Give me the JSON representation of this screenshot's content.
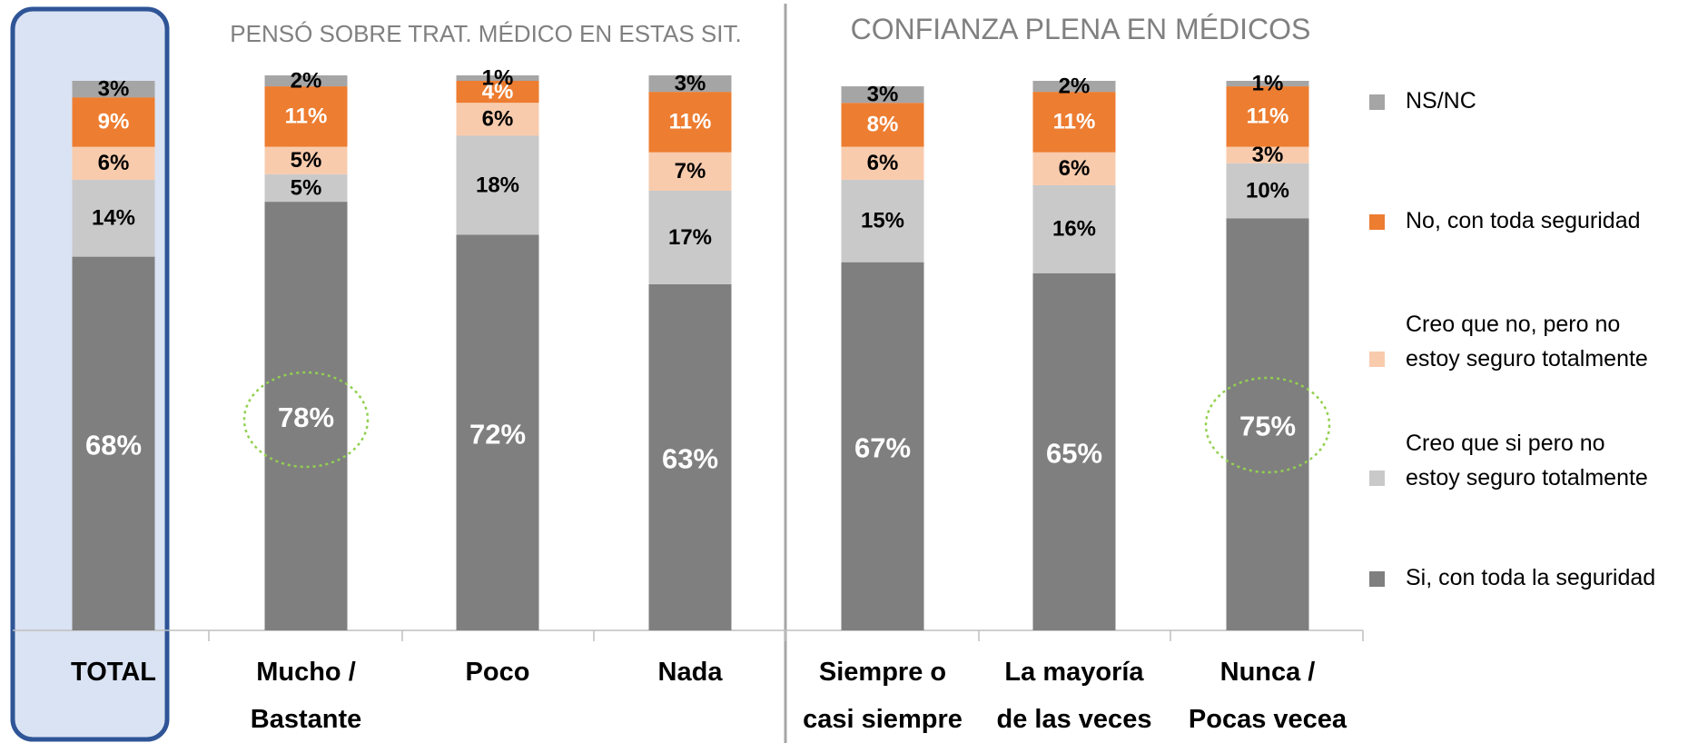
{
  "chart_data": {
    "type": "stacked_bar",
    "group_titles": [
      "PENSÓ SOBRE TRAT. MÉDICO EN ESTAS SIT.",
      "CONFIANZA PLENA EN MÉDICOS"
    ],
    "categories": [
      "TOTAL",
      "Mucho /\nBastante",
      "Poco",
      "Nada",
      "Siempre o\ncasi siempre",
      "La mayoría\nde las veces",
      "Nunca /\nPocas vecea"
    ],
    "series": [
      {
        "name": "Si, con toda la seguridad",
        "color": "#7f7f7f",
        "values": [
          68,
          78,
          72,
          63,
          67,
          65,
          75
        ],
        "value_labels": [
          "68%",
          "78%",
          "72%",
          "63%",
          "67%",
          "65%",
          "75%"
        ]
      },
      {
        "name": "Creo que si pero no\nestoy seguro totalmente",
        "color": "#c9c9c9",
        "values": [
          14,
          5,
          18,
          17,
          15,
          16,
          10
        ],
        "value_labels": [
          "14%",
          "5%",
          "18%",
          "17%",
          "15%",
          "16%",
          "10%"
        ]
      },
      {
        "name": "Creo que no, pero no\nestoy seguro totalmente",
        "color": "#f8cbad",
        "values": [
          6,
          5,
          6,
          7,
          6,
          6,
          3
        ],
        "value_labels": [
          "6%",
          "5%",
          "6%",
          "7%",
          "6%",
          "6%",
          "3%"
        ]
      },
      {
        "name": "No, con toda seguridad",
        "color": "#ed7d31",
        "values": [
          9,
          11,
          4,
          11,
          8,
          11,
          11
        ],
        "value_labels": [
          "9%",
          "11%",
          "4%",
          "11%",
          "8%",
          "11%",
          "11%"
        ]
      },
      {
        "name": "NS/NC",
        "color": "#a5a5a5",
        "values": [
          3,
          2,
          1,
          3,
          3,
          2,
          1
        ],
        "value_labels": [
          "3%",
          "2%",
          "1%",
          "3%",
          "3%",
          "2%",
          "1%"
        ]
      }
    ]
  }
}
